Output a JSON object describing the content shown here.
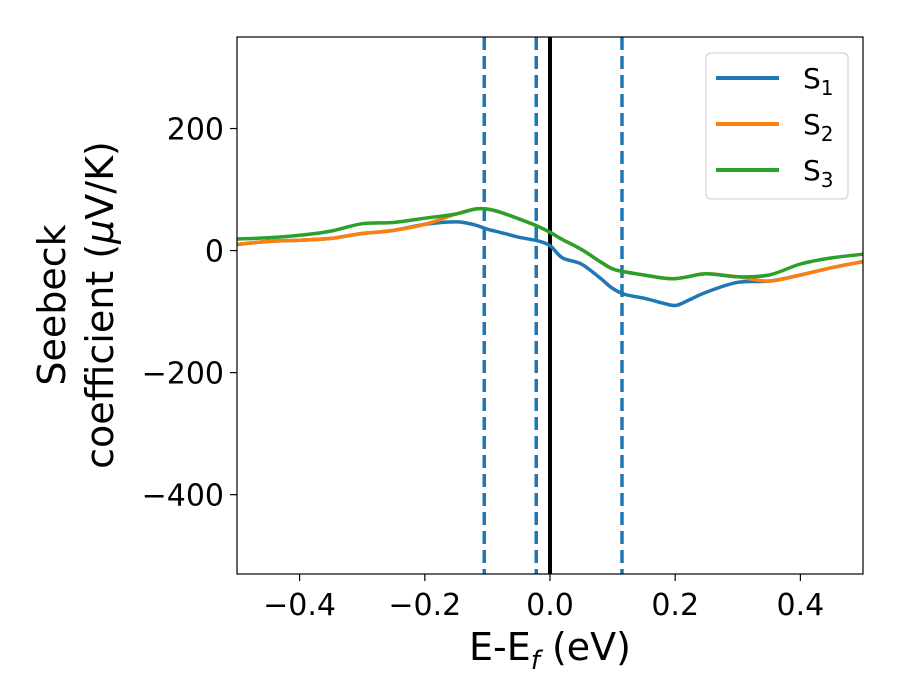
{
  "chart_data": {
    "type": "line",
    "xlabel": "E-E",
    "xlabel_sub": "f",
    "xlabel_unit": " (eV)",
    "ylabel_line1": "Seebeck",
    "ylabel_line2": "coefficient  (",
    "ylabel_mu": "μ",
    "ylabel_unit": "V/K)",
    "xlim": [
      -0.5,
      0.5
    ],
    "ylim": [
      -530,
      350
    ],
    "xticks": [
      -0.4,
      -0.2,
      0.0,
      0.2,
      0.4
    ],
    "xtick_labels": [
      "−0.4",
      "−0.2",
      "0.0",
      "0.2",
      "0.4"
    ],
    "yticks": [
      -400,
      -200,
      0,
      200
    ],
    "ytick_labels": [
      "−400",
      "−200",
      "0",
      "200"
    ],
    "legend_position": "top-right",
    "grid": false,
    "vertical_lines": [
      {
        "x": -0.105,
        "style": "dashed",
        "color": "#1f77b4"
      },
      {
        "x": -0.022,
        "style": "dashed",
        "color": "#1f77b4"
      },
      {
        "x": 0.0,
        "style": "solid",
        "color": "#000000"
      },
      {
        "x": 0.115,
        "style": "dashed",
        "color": "#1f77b4"
      }
    ],
    "series": [
      {
        "name": "S",
        "name_sub": "1",
        "color": "#1f77b4",
        "x": [
          -0.5,
          -0.45,
          -0.4,
          -0.35,
          -0.3,
          -0.25,
          -0.2,
          -0.15,
          -0.12,
          -0.1,
          -0.08,
          -0.05,
          -0.02,
          0.0,
          0.02,
          0.05,
          0.08,
          0.1,
          0.12,
          0.15,
          0.18,
          0.2,
          0.22,
          0.25,
          0.3,
          0.35,
          0.4,
          0.45,
          0.5
        ],
        "values": [
          10,
          15,
          17,
          20,
          28,
          33,
          43,
          47,
          42,
          35,
          30,
          22,
          16,
          8,
          -12,
          -22,
          -45,
          -62,
          -72,
          -78,
          -86,
          -90,
          -82,
          -68,
          -52,
          -50,
          -40,
          -28,
          -18
        ]
      },
      {
        "name": "S",
        "name_sub": "2",
        "color": "#ff7f0e",
        "x": [
          -0.5,
          -0.45,
          -0.4,
          -0.35,
          -0.3,
          -0.25,
          -0.2,
          -0.15,
          -0.12,
          -0.1,
          -0.08,
          -0.05,
          -0.02,
          0.0,
          0.02,
          0.05,
          0.08,
          0.1,
          0.12,
          0.15,
          0.18,
          0.2,
          0.22,
          0.25,
          0.3,
          0.35,
          0.4,
          0.45,
          0.5
        ],
        "values": [
          10,
          15,
          17,
          20,
          28,
          33,
          43,
          60,
          68,
          68,
          63,
          52,
          40,
          30,
          18,
          2,
          -18,
          -30,
          -35,
          -40,
          -45,
          -46,
          -43,
          -38,
          -43,
          -50,
          -40,
          -28,
          -18
        ]
      },
      {
        "name": "S",
        "name_sub": "3",
        "color": "#2ca02c",
        "x": [
          -0.5,
          -0.45,
          -0.4,
          -0.35,
          -0.3,
          -0.25,
          -0.2,
          -0.15,
          -0.12,
          -0.1,
          -0.08,
          -0.05,
          -0.02,
          0.0,
          0.02,
          0.05,
          0.08,
          0.1,
          0.12,
          0.15,
          0.18,
          0.2,
          0.22,
          0.25,
          0.3,
          0.35,
          0.4,
          0.45,
          0.5
        ],
        "values": [
          19,
          21,
          25,
          32,
          44,
          46,
          53,
          60,
          68,
          68,
          63,
          52,
          40,
          30,
          18,
          2,
          -18,
          -30,
          -35,
          -40,
          -45,
          -46,
          -43,
          -38,
          -43,
          -40,
          -22,
          -12,
          -6
        ]
      }
    ]
  }
}
